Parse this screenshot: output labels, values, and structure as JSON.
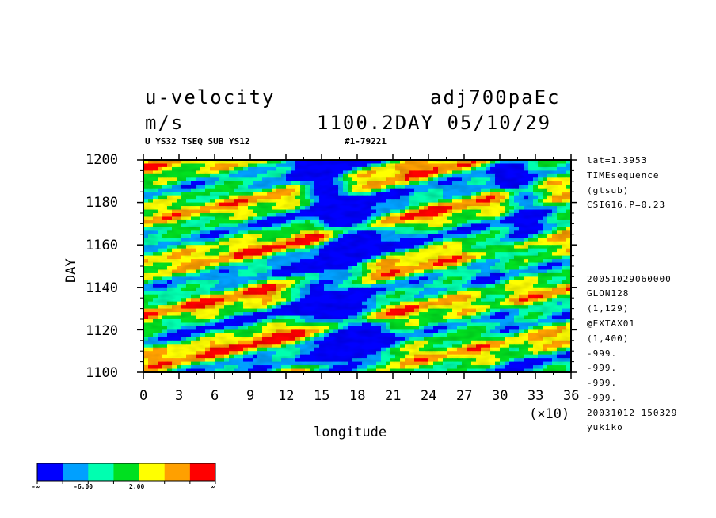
{
  "header": {
    "variable": "u-velocity",
    "units": "m/s",
    "experiment": "adj700paEc",
    "time_stamp": "1100.2DAY 05/10/29",
    "subtitle_left": "U YS32 TSEQ SUB YS12",
    "subtitle_right": "#1-79221"
  },
  "side_info": {
    "top": [
      "lat=1.3953",
      "TIMEsequence",
      "(gtsub)",
      "CSIG16.P=0.23"
    ],
    "bottom": [
      "20051029060000",
      "GLON128",
      "(1,129)",
      "@EXTAX01",
      "(1,400)",
      "-999.",
      "-999.",
      "-999.",
      "-999.",
      "20031012 150329",
      "yukiko"
    ]
  },
  "axis_labels": {
    "x": "longitude",
    "y": "DAY",
    "x_multiplier": "(×10)"
  },
  "colorbar": {
    "colors": [
      "#0000ff",
      "#00a0ff",
      "#00ffb0",
      "#00e020",
      "#ffff00",
      "#ffa000",
      "#ff0000"
    ],
    "labels": [
      "-∞",
      "-6.00",
      "2.00",
      "∞"
    ]
  },
  "chart_data": {
    "type": "heatmap",
    "title": "u-velocity",
    "xlabel": "longitude",
    "ylabel": "DAY",
    "x_ticks": [
      "0",
      "3",
      "6",
      "9",
      "12",
      "15",
      "18",
      "21",
      "24",
      "27",
      "30",
      "33",
      "36"
    ],
    "y_ticks": [
      "1100",
      "1120",
      "1140",
      "1160",
      "1180",
      "1200"
    ],
    "xlim": [
      0,
      36
    ],
    "ylim": [
      1100,
      1200
    ],
    "x_scale_note": "(×10)",
    "units": "m/s",
    "colorbar_levels": [
      "-∞",
      "-6.00",
      "2.00",
      "∞"
    ],
    "colormap": [
      "#0000ff",
      "#00a0ff",
      "#00ffb0",
      "#00e020",
      "#ffff00",
      "#ffa000",
      "#ff0000"
    ]
  }
}
